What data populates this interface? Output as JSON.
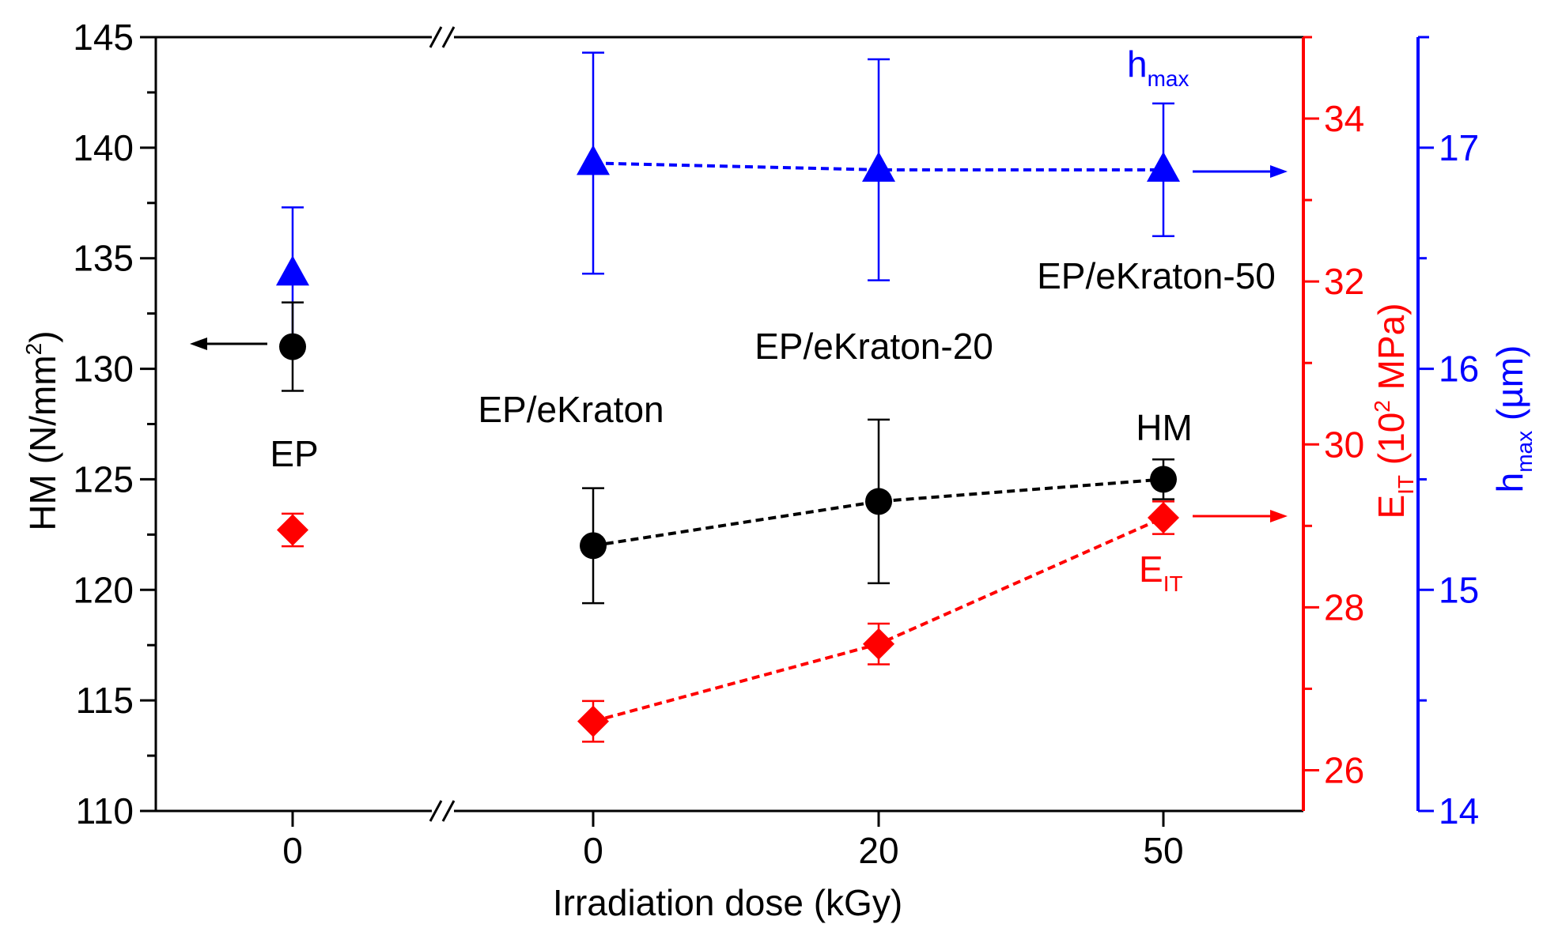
{
  "chart_data": {
    "type": "scatter",
    "xlabel": "Irradiation dose (kGy)",
    "x_tick_labels": [
      "0",
      "0",
      "20",
      "50"
    ],
    "axes": {
      "left": {
        "label_main": "HM (N/mm",
        "label_sup": "2",
        "label_end": ")",
        "range": [
          110,
          145
        ],
        "ticks": [
          110,
          115,
          120,
          125,
          130,
          135,
          140,
          145
        ],
        "color": "#000000"
      },
      "right_eit": {
        "label_main": "E",
        "label_sub": "IT",
        "label_mid": " (10",
        "label_sup": "2",
        "label_end": " MPa)",
        "range": [
          25.5,
          35
        ],
        "ticks": [
          26,
          28,
          30,
          32,
          34
        ],
        "color": "#ff0000"
      },
      "right_hmax": {
        "label_main": "h",
        "label_sub": "max",
        "label_end": " (µm)",
        "range": [
          14,
          17.5
        ],
        "ticks": [
          14,
          15,
          16,
          17
        ],
        "color": "#0000ff"
      }
    },
    "series": [
      {
        "name": "HM",
        "axis": "left",
        "marker": "circle",
        "color": "#000000",
        "points": [
          {
            "pos": 0,
            "y": 131.0,
            "err_low": 129.0,
            "err_high": 133.0
          },
          {
            "pos": 1,
            "y": 122.0,
            "err_low": 119.4,
            "err_high": 124.6
          },
          {
            "pos": 2,
            "y": 124.0,
            "err_low": 120.3,
            "err_high": 127.7
          },
          {
            "pos": 3,
            "y": 125.0,
            "err_low": 124.1,
            "err_high": 125.9
          }
        ]
      },
      {
        "name": "E_IT",
        "axis": "right_eit",
        "marker": "diamond",
        "color": "#ff0000",
        "points": [
          {
            "pos": 0,
            "y": 28.95,
            "err_low": 28.75,
            "err_high": 29.15
          },
          {
            "pos": 1,
            "y": 26.6,
            "err_low": 26.35,
            "err_high": 26.85
          },
          {
            "pos": 2,
            "y": 27.55,
            "err_low": 27.3,
            "err_high": 27.8
          },
          {
            "pos": 3,
            "y": 29.1,
            "err_low": 28.9,
            "err_high": 29.3
          }
        ]
      },
      {
        "name": "h_max",
        "axis": "right_hmax",
        "marker": "triangle",
        "color": "#0000ff",
        "points": [
          {
            "pos": 0,
            "y": 16.43,
            "err_low": 16.13,
            "err_high": 16.73
          },
          {
            "pos": 1,
            "y": 16.93,
            "err_low": 16.43,
            "err_high": 17.43
          },
          {
            "pos": 2,
            "y": 16.9,
            "err_low": 16.4,
            "err_high": 17.4
          },
          {
            "pos": 3,
            "y": 16.9,
            "err_low": 16.6,
            "err_high": 17.2
          }
        ]
      }
    ],
    "annotations": {
      "group_ep": "EP",
      "group_ekraton": "EP/eKraton",
      "group_ekraton20": "EP/eKraton-20",
      "group_ekraton50": "EP/eKraton-50",
      "label_hm": "HM",
      "label_eit_main": "E",
      "label_eit_sub": "IT",
      "label_hmax_main": "h",
      "label_hmax_sub": "max"
    }
  }
}
